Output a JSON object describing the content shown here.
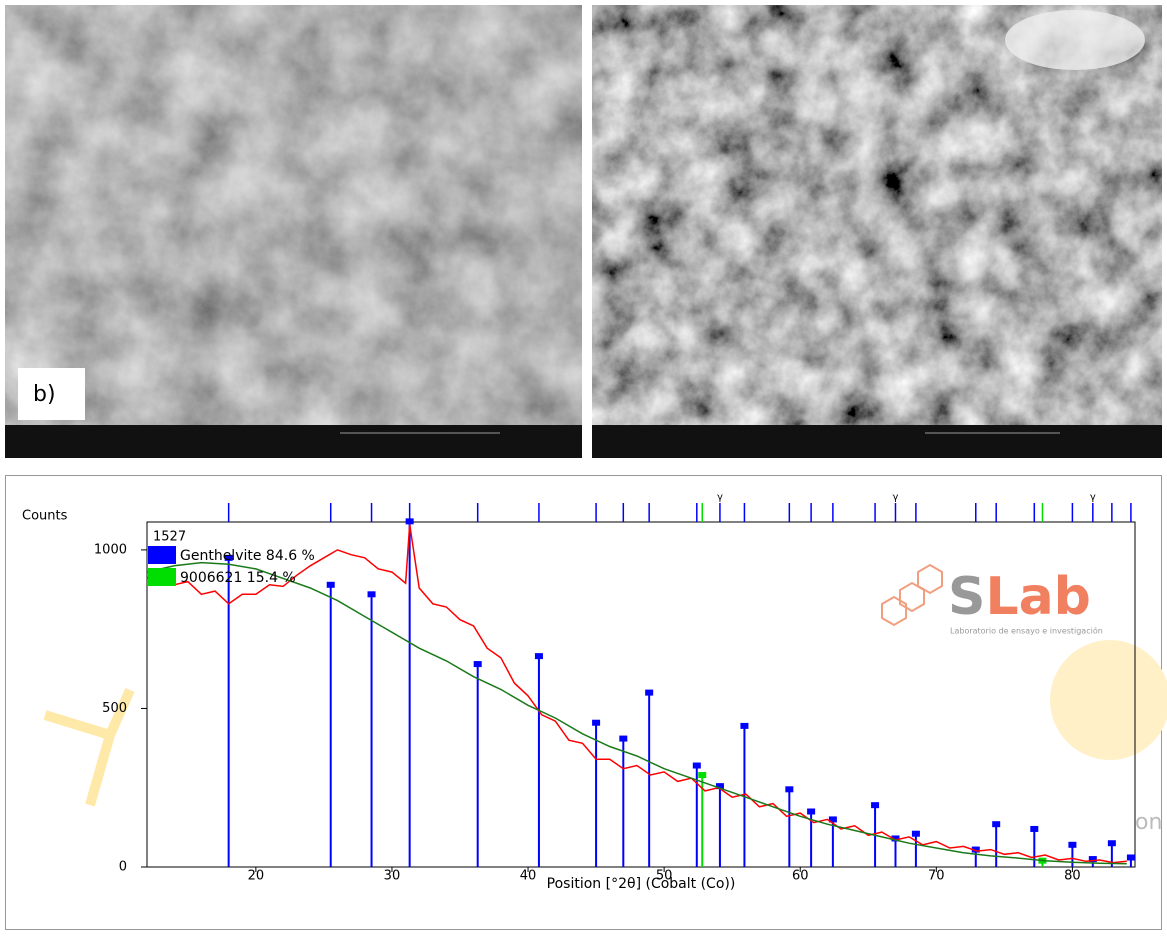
{
  "figure": {
    "panel_label": "b)"
  },
  "watermark": {
    "logo_s": "S",
    "logo_rest": "Lab",
    "tagline": "Laboratorio de ensayo e investigación",
    "fragment": "on"
  },
  "chart_data": {
    "type": "line",
    "y_label": "Counts",
    "x_label": "Position [°2θ] (Cobalt (Co))",
    "annotation": "1527",
    "xlim": [
      12,
      84.6
    ],
    "ylim": [
      0,
      1088
    ],
    "xticks": [
      20,
      30,
      40,
      50,
      60,
      70,
      80
    ],
    "yticks": [
      0,
      500,
      1000
    ],
    "top_marks": {
      "label": "γ",
      "x": [
        54.1,
        67.0,
        81.5
      ]
    },
    "series": [
      {
        "name": "Genthelvite 84.6 %",
        "color": "#0000ff",
        "marks": "sticks",
        "x": [
          18.0,
          25.5,
          28.5,
          31.3,
          36.3,
          40.8,
          45.0,
          47.0,
          48.9,
          52.4,
          54.1,
          55.9,
          59.2,
          60.8,
          62.4,
          65.5,
          67.0,
          68.5,
          72.9,
          74.4,
          77.2,
          80.0,
          81.5,
          82.9,
          84.3
        ],
        "values": [
          975,
          890,
          860,
          1090,
          640,
          665,
          455,
          405,
          550,
          320,
          255,
          445,
          245,
          175,
          150,
          195,
          90,
          105,
          55,
          135,
          120,
          70,
          25,
          75,
          30
        ]
      },
      {
        "name": "9006621 15.4 %",
        "color": "#00dd00",
        "marks": "sticks",
        "x": [
          52.8,
          77.8
        ],
        "values": [
          290,
          20
        ]
      }
    ],
    "lines": [
      {
        "color": "#ff0000",
        "x": [
          12,
          13,
          14,
          15,
          16,
          17,
          18,
          19,
          20,
          21,
          22,
          23,
          24,
          25,
          26,
          27,
          28,
          29,
          30,
          31,
          31.3,
          32,
          33,
          34,
          35,
          36,
          37,
          38,
          39,
          40,
          41,
          42,
          43,
          44,
          45,
          46,
          47,
          48,
          49,
          50,
          51,
          52,
          53,
          54,
          55,
          56,
          57,
          58,
          59,
          60,
          61,
          62,
          63,
          64,
          65,
          66,
          67,
          68,
          69,
          70,
          71,
          72,
          73,
          74,
          75,
          76,
          77,
          78,
          79,
          80,
          81,
          82,
          83,
          84
        ],
        "values": [
          910,
          940,
          890,
          900,
          860,
          870,
          830,
          860,
          860,
          890,
          885,
          920,
          950,
          975,
          1000,
          985,
          975,
          940,
          930,
          895,
          1080,
          880,
          830,
          820,
          780,
          760,
          690,
          660,
          580,
          540,
          480,
          460,
          400,
          390,
          340,
          340,
          310,
          320,
          290,
          300,
          270,
          280,
          240,
          250,
          220,
          230,
          190,
          200,
          160,
          170,
          140,
          150,
          120,
          130,
          100,
          110,
          85,
          95,
          70,
          80,
          60,
          65,
          50,
          55,
          40,
          45,
          30,
          38,
          22,
          27,
          18,
          22,
          14,
          18
        ]
      },
      {
        "color": "#1a7a1a",
        "x": [
          12,
          14,
          16,
          18,
          20,
          22,
          24,
          26,
          28,
          30,
          32,
          34,
          36,
          38,
          40,
          42,
          44,
          46,
          48,
          50,
          52,
          54,
          56,
          58,
          60,
          62,
          64,
          66,
          68,
          70,
          72,
          74,
          76,
          78,
          80,
          82,
          84
        ],
        "values": [
          930,
          950,
          960,
          955,
          940,
          910,
          880,
          840,
          790,
          740,
          690,
          650,
          600,
          560,
          510,
          470,
          420,
          380,
          350,
          310,
          280,
          250,
          220,
          190,
          160,
          135,
          115,
          95,
          75,
          60,
          45,
          35,
          28,
          20,
          15,
          12,
          10
        ]
      }
    ]
  }
}
